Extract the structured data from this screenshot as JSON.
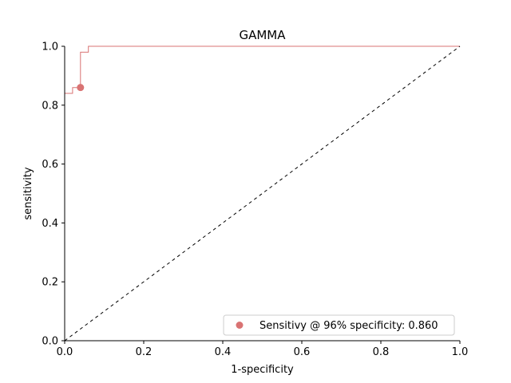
{
  "chart_data": {
    "type": "line",
    "title": "GAMMA",
    "xlabel": "1-specificity",
    "ylabel": "sensitivity",
    "xlim": [
      0,
      1
    ],
    "ylim": [
      0,
      1
    ],
    "xticks": [
      "0.0",
      "0.2",
      "0.4",
      "0.6",
      "0.8",
      "1.0"
    ],
    "yticks": [
      "0.0",
      "0.2",
      "0.4",
      "0.6",
      "0.8",
      "1.0"
    ],
    "grid": false,
    "legend_position": "bottom-right",
    "series": [
      {
        "kind": "roc-step",
        "color": "#d97373",
        "x": [
          0.0,
          0.0,
          0.02,
          0.02,
          0.04,
          0.04,
          0.06,
          0.06,
          1.0
        ],
        "y": [
          0.0,
          0.84,
          0.84,
          0.86,
          0.86,
          0.98,
          0.98,
          1.0,
          1.0
        ]
      },
      {
        "kind": "chance-diagonal",
        "color": "#000000",
        "x": [
          0,
          1
        ],
        "y": [
          0,
          1
        ]
      }
    ],
    "marker": {
      "name": "Sensitivy @ 96% specificity: 0.860",
      "x": 0.04,
      "y": 0.86,
      "color": "#d97373"
    }
  }
}
